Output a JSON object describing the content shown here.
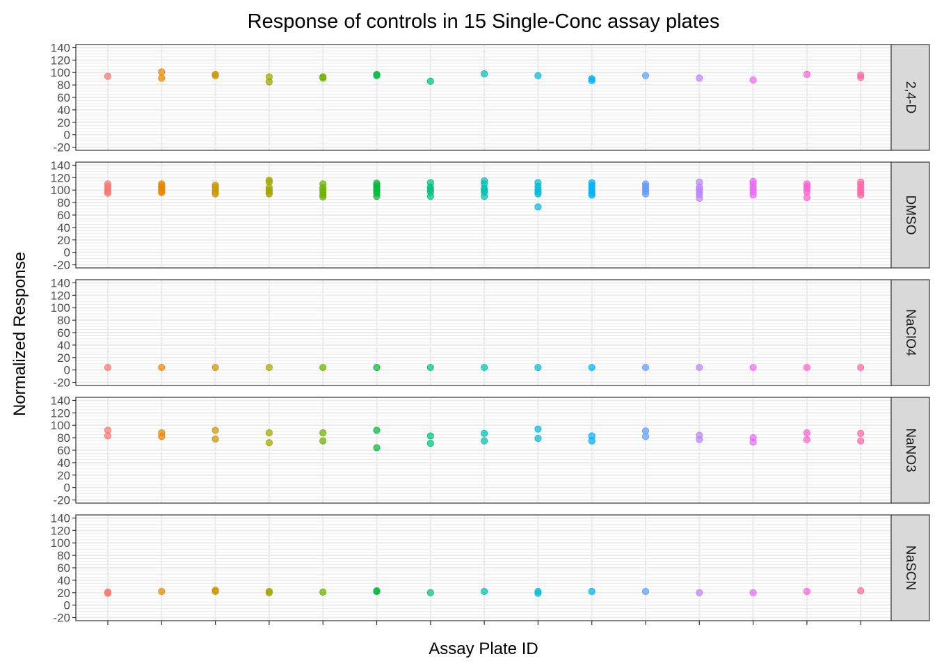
{
  "chart_data": {
    "type": "scatter",
    "title": "Response of controls in 15 Single-Conc assay plates",
    "xlabel": "Assay Plate ID",
    "ylabel": "Normalized Response",
    "ylim": [
      -25,
      145
    ],
    "y_ticks": [
      -20,
      0,
      20,
      40,
      60,
      80,
      100,
      120,
      140
    ],
    "x_categories": 15,
    "x_tick_labels_shown": false,
    "grid": true,
    "legend": "none",
    "colors": [
      "#F8766D",
      "#E58700",
      "#C99800",
      "#A3A500",
      "#6BB100",
      "#00BA38",
      "#00BF7D",
      "#00C0AF",
      "#00BCD8",
      "#00B0F6",
      "#619CFF",
      "#B983FF",
      "#E76BF3",
      "#FD61D1",
      "#FF67A4"
    ],
    "panels": [
      {
        "label": "2,4-D",
        "points": [
          [
            94
          ],
          [
            101,
            91
          ],
          [
            97,
            95
          ],
          [
            93,
            85
          ],
          [
            93,
            91
          ],
          [
            97,
            95
          ],
          [
            86
          ],
          [
            98
          ],
          [
            95
          ],
          [
            90,
            87
          ],
          [
            95
          ],
          [
            91
          ],
          [
            88
          ],
          [
            97
          ],
          [
            96,
            92
          ]
        ]
      },
      {
        "label": "DMSO",
        "points": [
          [
            110,
            106,
            102,
            98,
            95
          ],
          [
            110,
            107,
            104,
            101,
            98,
            96
          ],
          [
            108,
            105,
            101,
            97,
            94
          ],
          [
            116,
            113,
            104,
            100,
            97,
            94
          ],
          [
            110,
            104,
            100,
            96,
            92,
            89
          ],
          [
            111,
            108,
            105,
            102,
            99,
            95,
            90
          ],
          [
            112,
            105,
            101,
            97,
            90
          ],
          [
            115,
            110,
            103,
            100,
            96,
            90
          ],
          [
            112,
            106,
            101,
            97,
            94,
            73
          ],
          [
            112,
            108,
            103,
            99,
            95,
            92
          ],
          [
            110,
            106,
            102,
            98,
            94
          ],
          [
            113,
            105,
            101,
            97,
            93,
            87
          ],
          [
            114,
            110,
            105,
            101,
            97,
            92
          ],
          [
            110,
            106,
            102,
            97,
            88
          ],
          [
            113,
            109,
            104,
            100,
            96,
            92
          ]
        ]
      },
      {
        "label": "NaClO4",
        "points": [
          [
            4
          ],
          [
            4
          ],
          [
            4
          ],
          [
            4
          ],
          [
            4
          ],
          [
            4
          ],
          [
            4
          ],
          [
            4
          ],
          [
            4
          ],
          [
            4
          ],
          [
            4
          ],
          [
            4
          ],
          [
            4
          ],
          [
            4
          ],
          [
            4
          ]
        ]
      },
      {
        "label": "NaNO3",
        "points": [
          [
            92,
            83
          ],
          [
            88,
            82
          ],
          [
            92,
            78
          ],
          [
            88,
            72
          ],
          [
            88,
            75
          ],
          [
            92,
            64
          ],
          [
            83,
            71
          ],
          [
            87,
            75
          ],
          [
            94,
            79
          ],
          [
            83,
            75
          ],
          [
            91,
            82
          ],
          [
            84,
            77
          ],
          [
            80,
            73
          ],
          [
            88,
            77
          ],
          [
            87,
            75
          ]
        ]
      },
      {
        "label": "NaSCN",
        "points": [
          [
            21,
            19
          ],
          [
            22
          ],
          [
            24,
            22
          ],
          [
            22,
            20
          ],
          [
            21
          ],
          [
            23,
            22
          ],
          [
            20
          ],
          [
            22
          ],
          [
            22,
            19
          ],
          [
            22
          ],
          [
            22
          ],
          [
            20
          ],
          [
            20
          ],
          [
            22
          ],
          [
            23
          ]
        ]
      }
    ]
  }
}
